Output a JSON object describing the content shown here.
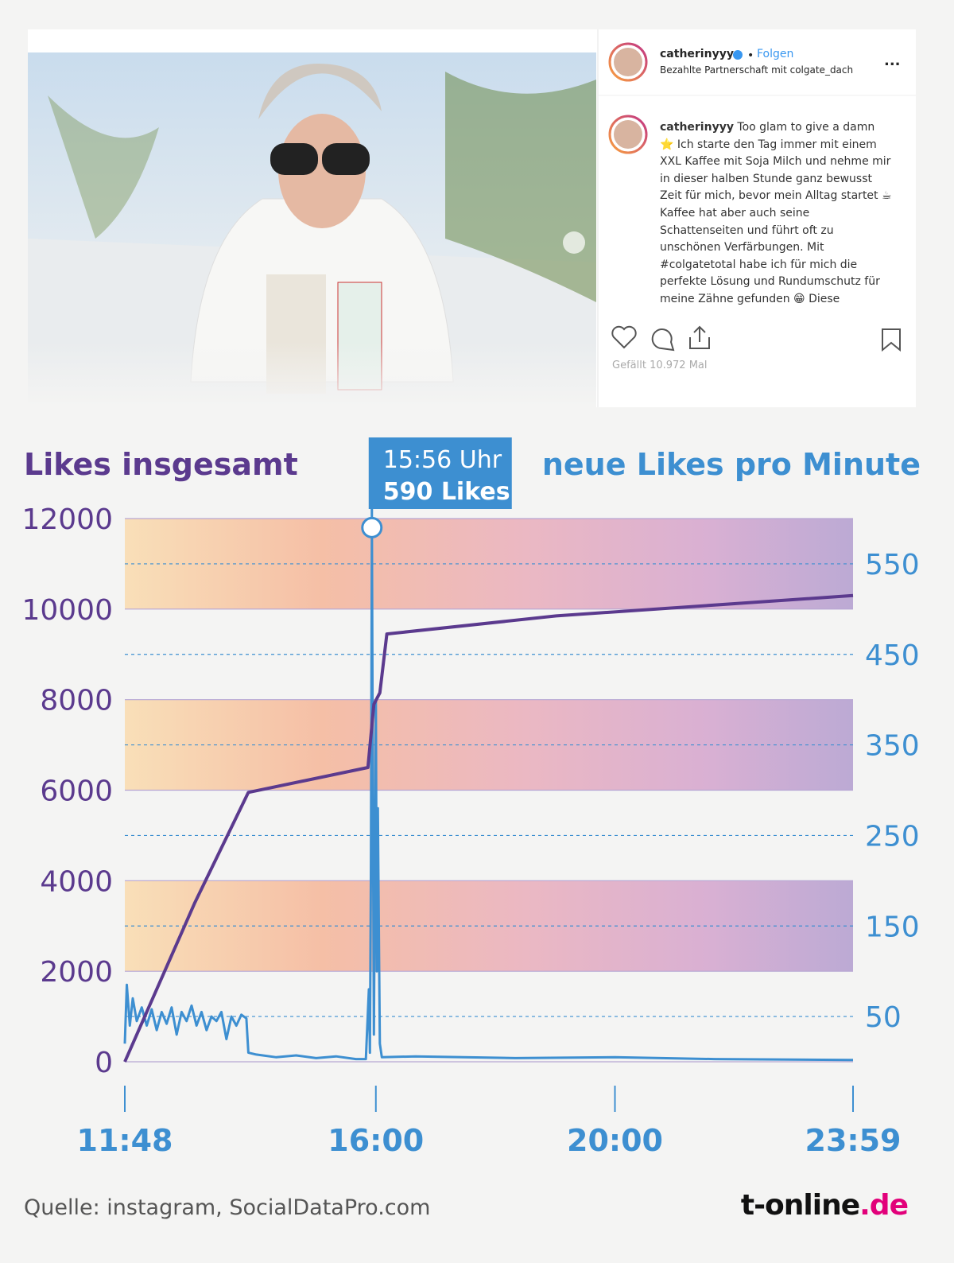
{
  "post": {
    "user": "catherinyyy",
    "follow": "Folgen",
    "partnership": "Bezahlte Partnerschaft mit colgate_dach",
    "caption": "Too glam to give a damn ⭐ Ich starte den Tag immer mit einem XXL Kaffee mit Soja Milch und nehme mir in dieser halben Stunde ganz bewusst Zeit für mich, bevor mein Alltag startet ☕ Kaffee hat aber auch seine Schattenseiten und führt oft zu unschönen Verfärbungen. Mit #colgatetotal habe ich für mich die perfekte Lösung und Rundumschutz für meine Zähne gefunden 😁 Diese",
    "likes": "Gefällt 10.972 Mal"
  },
  "chart_data": {
    "type": "line",
    "y_label": "Likes insgesamt",
    "y2_label": "neue Likes pro Minute",
    "xlim": [
      708,
      1439
    ],
    "xticks": [
      {
        "value": 708,
        "label": "11:48"
      },
      {
        "value": 960,
        "label": "16:00"
      },
      {
        "value": 1200,
        "label": "20:00"
      },
      {
        "value": 1439,
        "label": "23:59"
      }
    ],
    "ylim": [
      0,
      12000
    ],
    "yticks": [
      0,
      2000,
      4000,
      6000,
      8000,
      10000,
      12000
    ],
    "y2lim": [
      0,
      600
    ],
    "y2ticks": [
      50,
      150,
      250,
      350,
      450,
      550
    ],
    "series": [
      {
        "name": "Likes insgesamt",
        "color": "#5b3a8e",
        "x": [
          708,
          778,
          832,
          952,
          958,
          964,
          971,
          1141,
          1439
        ],
        "values": [
          0,
          3500,
          5950,
          6500,
          7900,
          8150,
          9450,
          9850,
          10300
        ]
      },
      {
        "name": "neue Likes pro Minute",
        "color": "#3d8fd1",
        "axis": "y2",
        "x": [
          708,
          710,
          713,
          716,
          720,
          725,
          730,
          735,
          740,
          745,
          750,
          755,
          760,
          765,
          770,
          775,
          780,
          785,
          790,
          795,
          800,
          805,
          810,
          815,
          820,
          825,
          830,
          832,
          840,
          860,
          880,
          900,
          920,
          940,
          950,
          953,
          954,
          955,
          956,
          957,
          958,
          960,
          961,
          962,
          963,
          964,
          966,
          1000,
          1100,
          1200,
          1300,
          1439
        ],
        "values": [
          20,
          85,
          40,
          70,
          45,
          60,
          40,
          58,
          35,
          55,
          42,
          60,
          30,
          55,
          45,
          62,
          40,
          55,
          35,
          50,
          45,
          55,
          25,
          50,
          40,
          52,
          48,
          10,
          8,
          5,
          7,
          4,
          6,
          3,
          3,
          80,
          10,
          200,
          590,
          300,
          30,
          400,
          100,
          280,
          150,
          20,
          5,
          6,
          4,
          5,
          3,
          2
        ]
      }
    ],
    "annotation": {
      "x": 956,
      "y": 590,
      "texts": [
        "15:56 Uhr",
        "590 Likes"
      ]
    },
    "source": "Quelle: instagram, SocialDataPro.com",
    "brand": [
      "t-online",
      ".de"
    ]
  }
}
